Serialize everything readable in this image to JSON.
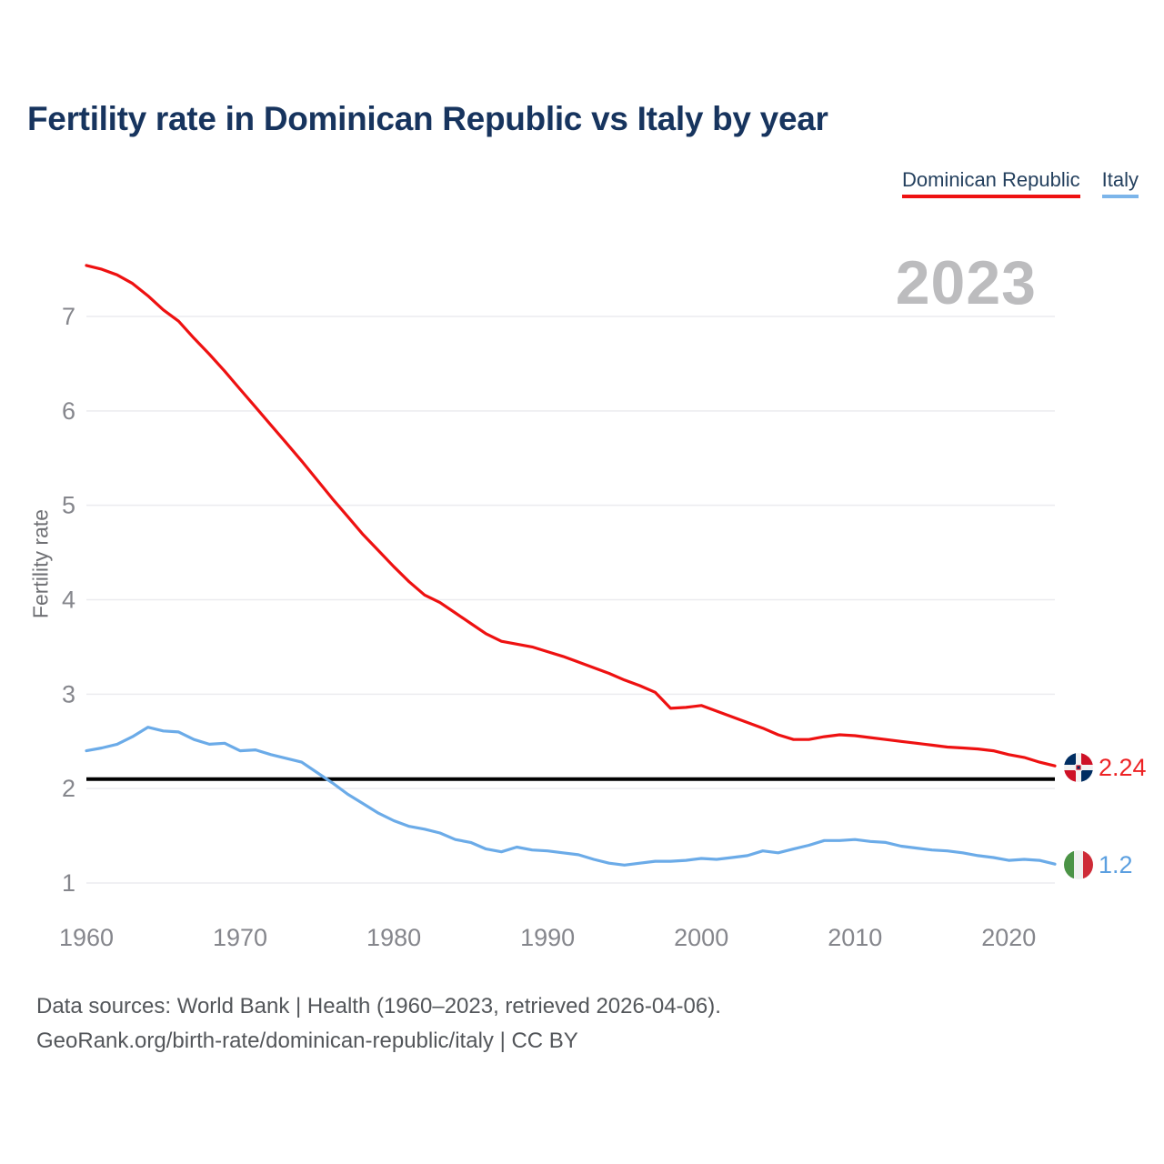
{
  "title": "Fertility rate in Dominican Republic vs Italy by year",
  "legend": {
    "items": [
      {
        "label": "Dominican Republic",
        "underline_color": "#ee1111"
      },
      {
        "label": "Italy",
        "underline_color": "#7cb5ea"
      }
    ]
  },
  "watermark": "2023",
  "y_axis": {
    "label": "Fertility rate"
  },
  "end_labels": {
    "dominican_republic": "2.24",
    "italy": "1.2"
  },
  "footer": {
    "line1": "Data sources: World Bank | Health (1960–2023, retrieved 2026-04-06).",
    "line2": "GeoRank.org/birth-rate/dominican-republic/italy | CC BY"
  },
  "colors": {
    "dominican_republic": "#ee1111",
    "italy": "#6babe8",
    "reference_line": "#000000",
    "gridline": "#ebebef",
    "tick_text": "#85868c",
    "title_text": "#17345e",
    "watermark_text": "#bcbcbe"
  },
  "chart_data": {
    "type": "line",
    "title": "Fertility rate in Dominican Republic vs Italy by year",
    "xlabel": "",
    "ylabel": "Fertility rate",
    "x_ticks": [
      1960,
      1970,
      1980,
      1990,
      2000,
      2010,
      2020
    ],
    "y_ticks": [
      1,
      2,
      3,
      4,
      5,
      6,
      7
    ],
    "xlim": [
      1960,
      2023
    ],
    "ylim": [
      0.75,
      7.75
    ],
    "grid": "horizontal",
    "legend_position": "top-right",
    "reference_line": {
      "value": 2.1,
      "color": "#000000"
    },
    "x": [
      1960,
      1961,
      1962,
      1963,
      1964,
      1965,
      1966,
      1967,
      1968,
      1969,
      1970,
      1971,
      1972,
      1973,
      1974,
      1975,
      1976,
      1977,
      1978,
      1979,
      1980,
      1981,
      1982,
      1983,
      1984,
      1985,
      1986,
      1987,
      1988,
      1989,
      1990,
      1991,
      1992,
      1993,
      1994,
      1995,
      1996,
      1997,
      1998,
      1999,
      2000,
      2001,
      2002,
      2003,
      2004,
      2005,
      2006,
      2007,
      2008,
      2009,
      2010,
      2011,
      2012,
      2013,
      2014,
      2015,
      2016,
      2017,
      2018,
      2019,
      2020,
      2021,
      2022,
      2023
    ],
    "series": [
      {
        "name": "Dominican Republic",
        "color": "#ee1111",
        "end_value_label": "2.24",
        "values": [
          7.54,
          7.5,
          7.44,
          7.35,
          7.22,
          7.07,
          6.95,
          6.77,
          6.6,
          6.42,
          6.23,
          6.04,
          5.85,
          5.66,
          5.47,
          5.27,
          5.07,
          4.88,
          4.69,
          4.52,
          4.35,
          4.19,
          4.05,
          3.97,
          3.86,
          3.75,
          3.64,
          3.56,
          3.53,
          3.5,
          3.45,
          3.4,
          3.34,
          3.28,
          3.22,
          3.15,
          3.09,
          3.02,
          2.85,
          2.86,
          2.88,
          2.82,
          2.76,
          2.7,
          2.64,
          2.57,
          2.52,
          2.52,
          2.55,
          2.57,
          2.56,
          2.54,
          2.52,
          2.5,
          2.48,
          2.46,
          2.44,
          2.43,
          2.42,
          2.4,
          2.36,
          2.33,
          2.28,
          2.24
        ]
      },
      {
        "name": "Italy",
        "color": "#6babe8",
        "end_value_label": "1.2",
        "values": [
          2.4,
          2.43,
          2.47,
          2.55,
          2.65,
          2.61,
          2.6,
          2.52,
          2.47,
          2.48,
          2.4,
          2.41,
          2.36,
          2.32,
          2.28,
          2.17,
          2.06,
          1.94,
          1.84,
          1.74,
          1.66,
          1.6,
          1.57,
          1.53,
          1.46,
          1.43,
          1.36,
          1.33,
          1.38,
          1.35,
          1.34,
          1.32,
          1.3,
          1.25,
          1.21,
          1.19,
          1.21,
          1.23,
          1.23,
          1.24,
          1.26,
          1.25,
          1.27,
          1.29,
          1.34,
          1.32,
          1.36,
          1.4,
          1.45,
          1.45,
          1.46,
          1.44,
          1.43,
          1.39,
          1.37,
          1.35,
          1.34,
          1.32,
          1.29,
          1.27,
          1.24,
          1.25,
          1.24,
          1.2
        ]
      }
    ]
  }
}
